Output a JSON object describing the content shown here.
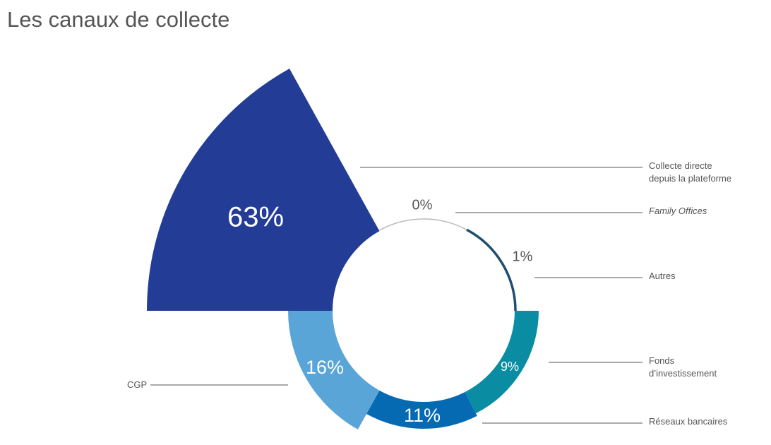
{
  "title": "Les canaux de collecte",
  "chart_data": {
    "type": "polar-area",
    "title": "Les canaux de collecte",
    "slices": [
      {
        "name": "Collecte directe depuis la plateforme",
        "lines": [
          "Collecte directe",
          "depuis la plateforme"
        ],
        "value": 63,
        "label": "63%",
        "color": "#233D96",
        "italic": false
      },
      {
        "name": "Family Offices",
        "lines": [
          "Family Offices"
        ],
        "value": 0,
        "label": "0%",
        "color": "#BBBBBB",
        "italic": true
      },
      {
        "name": "Autres",
        "lines": [
          "Autres"
        ],
        "value": 1,
        "label": "1%",
        "color": "#1F4E70",
        "italic": false
      },
      {
        "name": "Fonds d’investissement",
        "lines": [
          "Fonds",
          "d’investissement"
        ],
        "value": 9,
        "label": "9%",
        "color": "#0A8DA3",
        "italic": false
      },
      {
        "name": "Réseaux bancaires",
        "lines": [
          "Réseaux bancaires"
        ],
        "value": 11,
        "label": "11%",
        "color": "#066AB2",
        "italic": false
      },
      {
        "name": "CGP",
        "lines": [
          "CGP"
        ],
        "value": 16,
        "label": "16%",
        "color": "#5AA5D8",
        "italic": false
      }
    ]
  }
}
